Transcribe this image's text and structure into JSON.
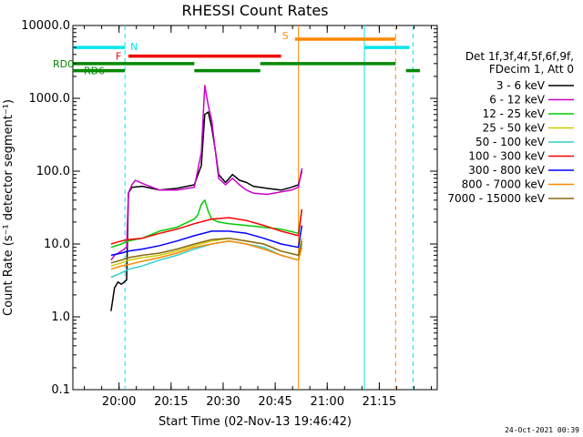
{
  "chart_data": {
    "type": "line",
    "title": "RHESSI Count Rates",
    "xlabel": "Start Time (02-Nov-13 19:46:42)",
    "ylabel": "Count Rate (s⁻¹ detector segment⁻¹)",
    "yscale": "log",
    "ylim": [
      0.1,
      10000
    ],
    "xlim_minutes": [
      0,
      105
    ],
    "x_tick_labels": [
      "20:00",
      "20:15",
      "20:30",
      "20:45",
      "21:00",
      "21:15"
    ],
    "x_tick_minutes": [
      13.3,
      28.3,
      43.3,
      58.3,
      73.3,
      88.3
    ],
    "y_tick_labels": [
      "0.1",
      "1.0",
      "10.0",
      "100.0",
      "1000.0",
      "10000.0"
    ],
    "y_tick_values": [
      0.1,
      1,
      10,
      100,
      1000,
      10000
    ],
    "grid": false,
    "legend_position": "right",
    "legend_header": [
      "Det 1f,3f,4f,5f,6f,9f,",
      "FDecim 1, Att 0"
    ],
    "series": [
      {
        "name": "3 - 6 keV",
        "color": "#000000",
        "x": [
          11,
          12,
          13,
          14,
          15.5,
          16,
          17,
          20,
          25,
          30,
          35,
          37,
          38,
          39,
          40,
          41,
          42,
          44,
          46,
          48,
          50,
          52,
          56,
          60,
          63,
          65,
          66
        ],
        "y": [
          1.2,
          2.5,
          3,
          2.8,
          3.2,
          50,
          60,
          62,
          55,
          58,
          65,
          120,
          600,
          650,
          400,
          200,
          90,
          70,
          90,
          75,
          70,
          62,
          58,
          55,
          60,
          65,
          100
        ]
      },
      {
        "name": "6 - 12 keV",
        "color": "#cc00cc",
        "x": [
          11,
          12,
          14,
          15.5,
          16,
          17,
          18,
          20,
          25,
          30,
          35,
          37,
          38,
          39,
          40,
          41,
          42,
          44,
          46,
          48,
          50,
          52,
          56,
          60,
          63,
          65,
          66
        ],
        "y": [
          6,
          7,
          8,
          9,
          50,
          65,
          75,
          68,
          55,
          55,
          60,
          180,
          1500,
          800,
          500,
          200,
          80,
          65,
          80,
          65,
          55,
          50,
          48,
          52,
          55,
          60,
          110
        ]
      },
      {
        "name": "12 - 25 keV",
        "color": "#00cc00",
        "x": [
          11,
          14,
          16,
          20,
          25,
          30,
          35,
          36,
          37,
          38,
          39,
          40,
          42,
          45,
          50,
          55,
          60,
          65,
          66
        ],
        "y": [
          9,
          10,
          11,
          12,
          15,
          17,
          22,
          25,
          35,
          40,
          28,
          22,
          20,
          19,
          18,
          17,
          16,
          14,
          30
        ]
      },
      {
        "name": "25 - 50 keV",
        "color": "#cccc00",
        "x": [
          11,
          14,
          16,
          20,
          25,
          30,
          35,
          40,
          45,
          50,
          55,
          60,
          65,
          66
        ],
        "y": [
          5,
          5.5,
          6,
          6.5,
          7,
          8,
          9.5,
          11,
          12,
          11,
          10,
          8,
          7,
          12
        ]
      },
      {
        "name": "50 - 100 keV",
        "color": "#33cccc",
        "x": [
          11,
          14,
          16,
          20,
          25,
          30,
          35,
          40,
          45,
          50,
          55,
          60,
          65,
          66
        ],
        "y": [
          3.5,
          4,
          4.5,
          5,
          6,
          7,
          8.5,
          10,
          11,
          10,
          9,
          7,
          6,
          10
        ]
      },
      {
        "name": "100 - 300 keV",
        "color": "#ff0000",
        "x": [
          11,
          14,
          16,
          20,
          25,
          30,
          35,
          40,
          45,
          50,
          55,
          60,
          65,
          66
        ],
        "y": [
          10,
          11,
          11.5,
          12,
          14,
          16,
          19,
          22,
          23,
          21,
          18,
          15,
          13,
          30
        ]
      },
      {
        "name": "300 - 800 keV",
        "color": "#0000ff",
        "x": [
          11,
          14,
          16,
          20,
          25,
          30,
          35,
          40,
          45,
          50,
          55,
          60,
          65,
          66
        ],
        "y": [
          7,
          7.5,
          8,
          8.5,
          9.5,
          11,
          13,
          15,
          15,
          14,
          12,
          10,
          9,
          18
        ]
      },
      {
        "name": "800 - 7000 keV",
        "color": "#ff8800",
        "x": [
          11,
          14,
          16,
          20,
          25,
          30,
          35,
          40,
          45,
          50,
          55,
          60,
          65,
          66
        ],
        "y": [
          4.5,
          5,
          5.2,
          5.8,
          6.5,
          7.5,
          9,
          10,
          11,
          10,
          8.5,
          7,
          6,
          9
        ]
      },
      {
        "name": "7000 - 15000 keV",
        "color": "#8b6914",
        "x": [
          11,
          14,
          16,
          20,
          25,
          30,
          35,
          40,
          45,
          50,
          55,
          60,
          65,
          66
        ],
        "y": [
          5.5,
          6,
          6.5,
          7,
          7.5,
          8.5,
          10,
          11.5,
          12,
          11,
          10,
          8,
          7,
          11
        ]
      }
    ],
    "state_bars": [
      {
        "label": "N",
        "color": "#00e5ee",
        "y_value": 5000,
        "segments": [
          [
            0,
            15
          ],
          [
            84,
            97
          ]
        ]
      },
      {
        "label": "F",
        "color": "#ee0000",
        "y_value": 3800,
        "segments": [
          [
            16,
            60
          ]
        ]
      },
      {
        "label": "S",
        "color": "#ff8800",
        "y_value": 6500,
        "segments": [
          [
            64,
            93
          ]
        ]
      },
      {
        "label": "RD0",
        "color": "#008800",
        "y_value": 3000,
        "segments": [
          [
            0,
            35
          ],
          [
            54,
            93
          ]
        ]
      },
      {
        "label": "RD6",
        "color": "#008800",
        "y_value": 2400,
        "segments": [
          [
            0,
            15
          ],
          [
            35,
            54
          ],
          [
            96,
            100
          ]
        ]
      }
    ],
    "vertical_markers": [
      {
        "minute": 15,
        "color": "#00e5ee",
        "style": "dashed"
      },
      {
        "minute": 65,
        "color": "#ff8800",
        "style": "solid"
      },
      {
        "minute": 84,
        "color": "#00e5ee",
        "style": "solid"
      },
      {
        "minute": 93,
        "color": "#ff8800",
        "style": "dashed"
      },
      {
        "minute": 98,
        "color": "#00e5ee",
        "style": "dashed"
      }
    ]
  },
  "timestamp": "24-Oct-2021 00:39"
}
